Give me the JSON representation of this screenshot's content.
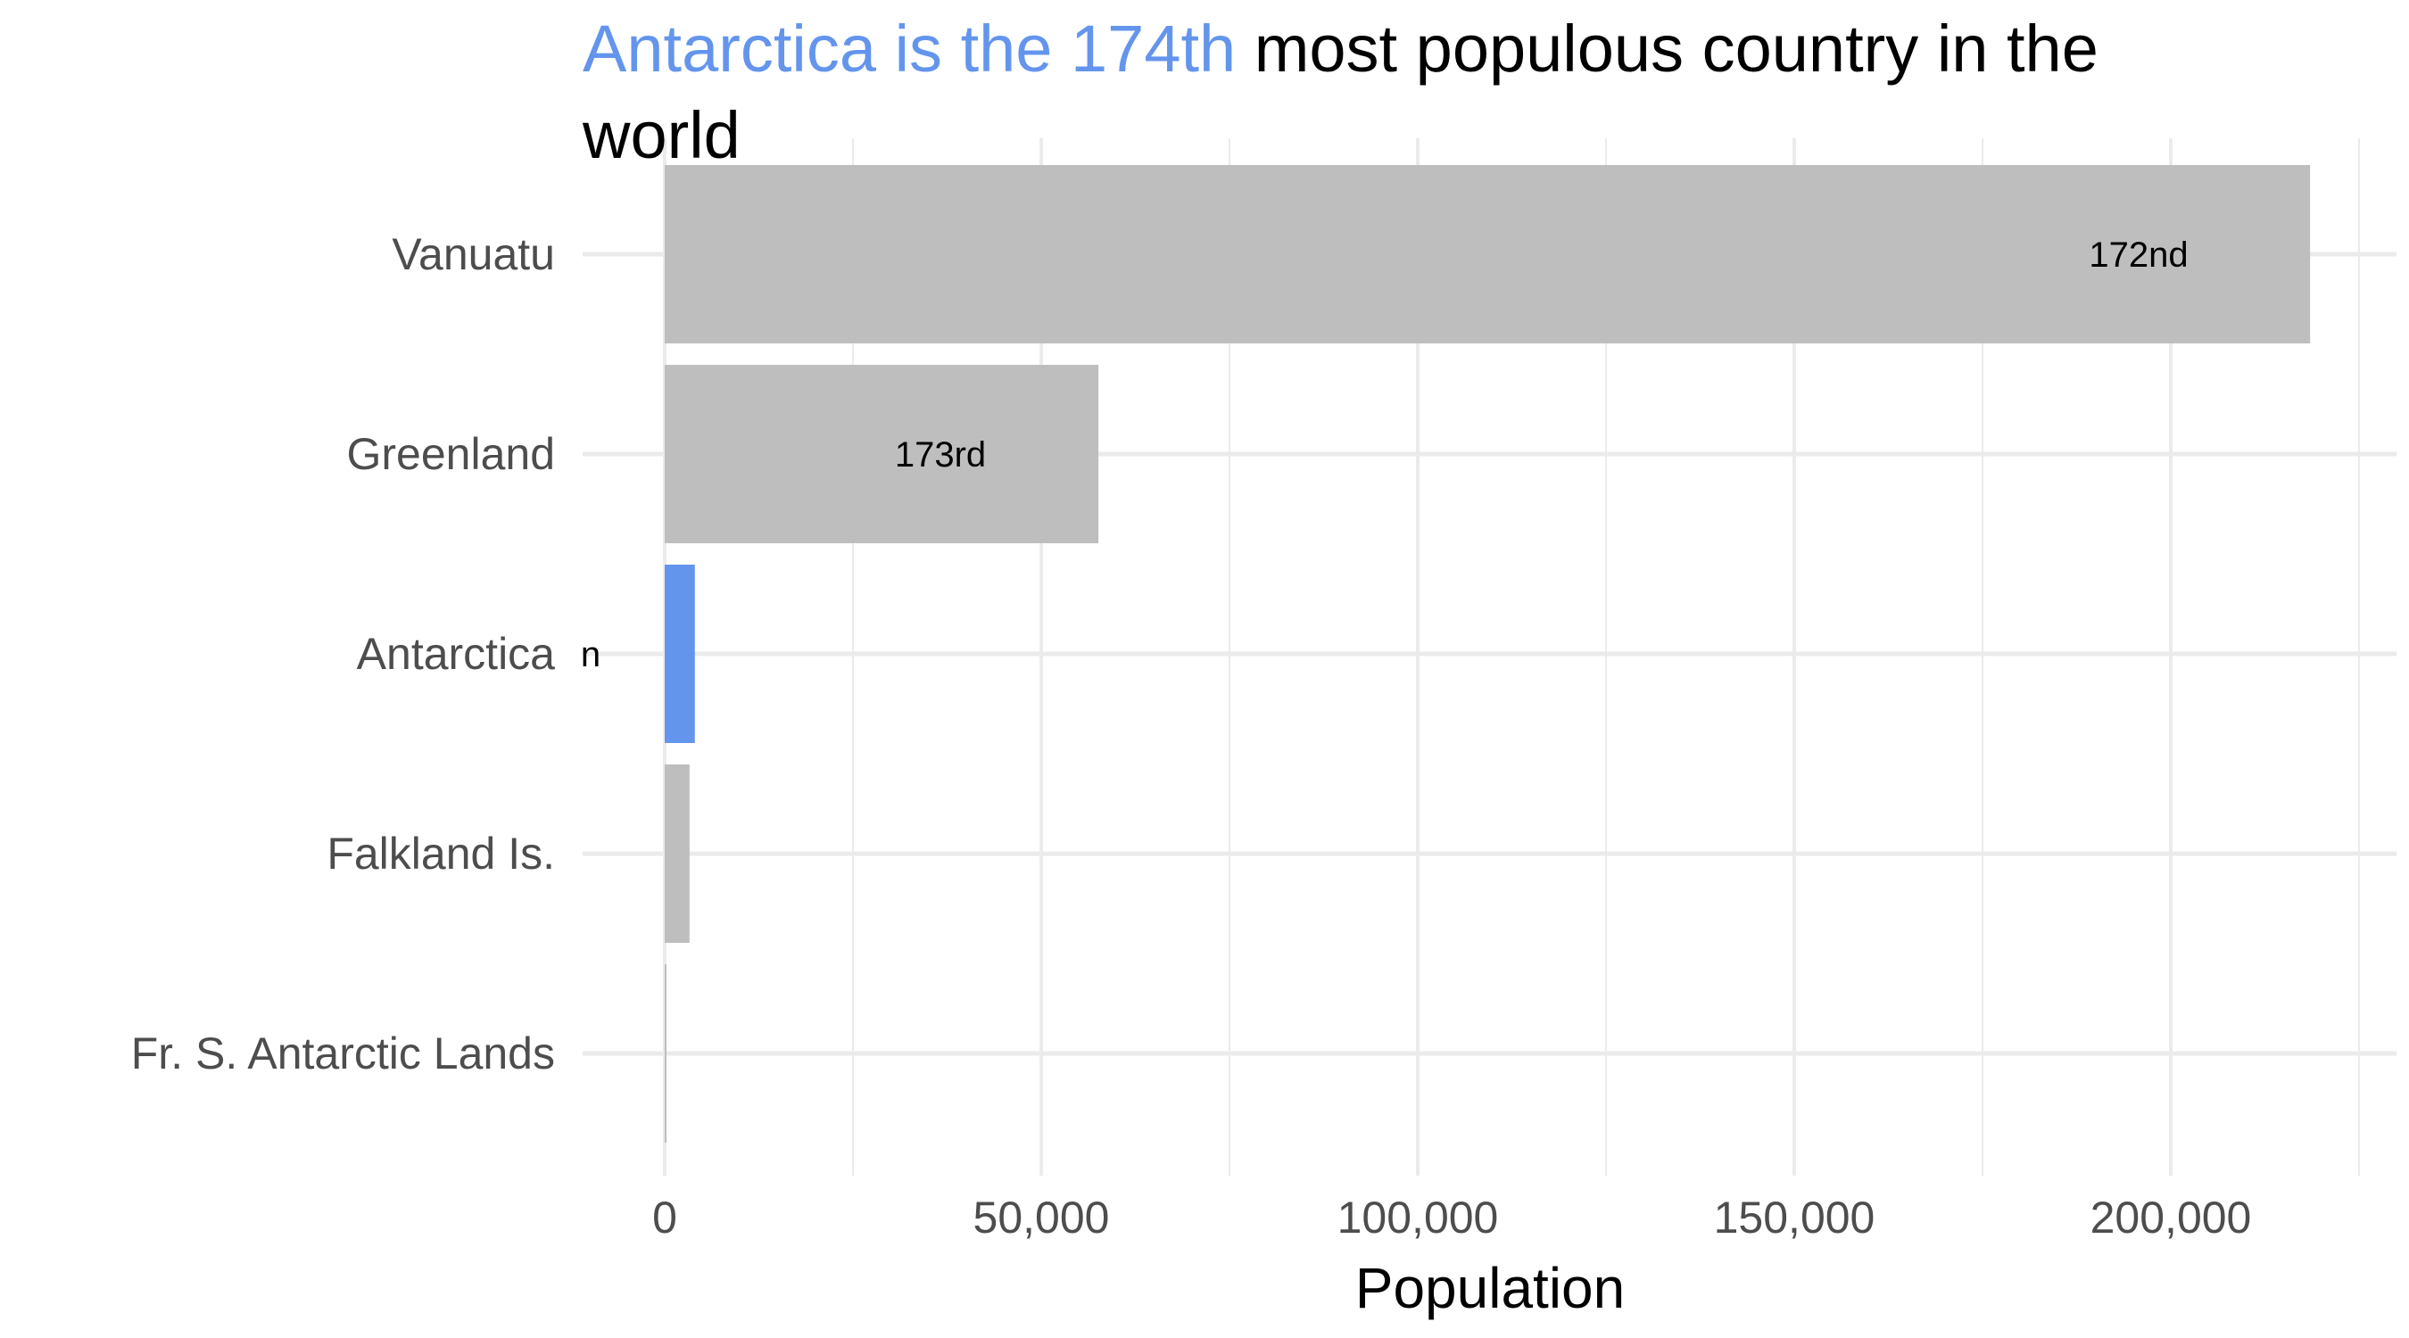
{
  "chart_data": {
    "type": "bar",
    "orientation": "horizontal",
    "title": {
      "highlight": "Antarctica is the 174th",
      "rest_line1": " most populous country in the",
      "rest_line2": "world"
    },
    "xlabel": "Population",
    "ylabel": "",
    "xlim": [
      0,
      225000
    ],
    "x_ticks": [
      0,
      50000,
      100000,
      150000,
      200000
    ],
    "x_tick_labels": [
      "0",
      "50,000",
      "100,000",
      "150,000",
      "200,000"
    ],
    "categories": [
      "Vanuatu",
      "Greenland",
      "Antarctica",
      "Falkland Is.",
      "Fr. S. Antarctic Lands"
    ],
    "values": [
      218500,
      57600,
      4000,
      3300,
      140
    ],
    "rank_labels": [
      "172nd",
      "173rd",
      "n",
      "",
      ""
    ],
    "highlight_category": "Antarctica",
    "grid": true,
    "legend": "none",
    "colors": {
      "highlight": "#6495ED",
      "default": "#BEBEBE",
      "grid": "#EBEBEB",
      "title_text": "#000000"
    }
  }
}
